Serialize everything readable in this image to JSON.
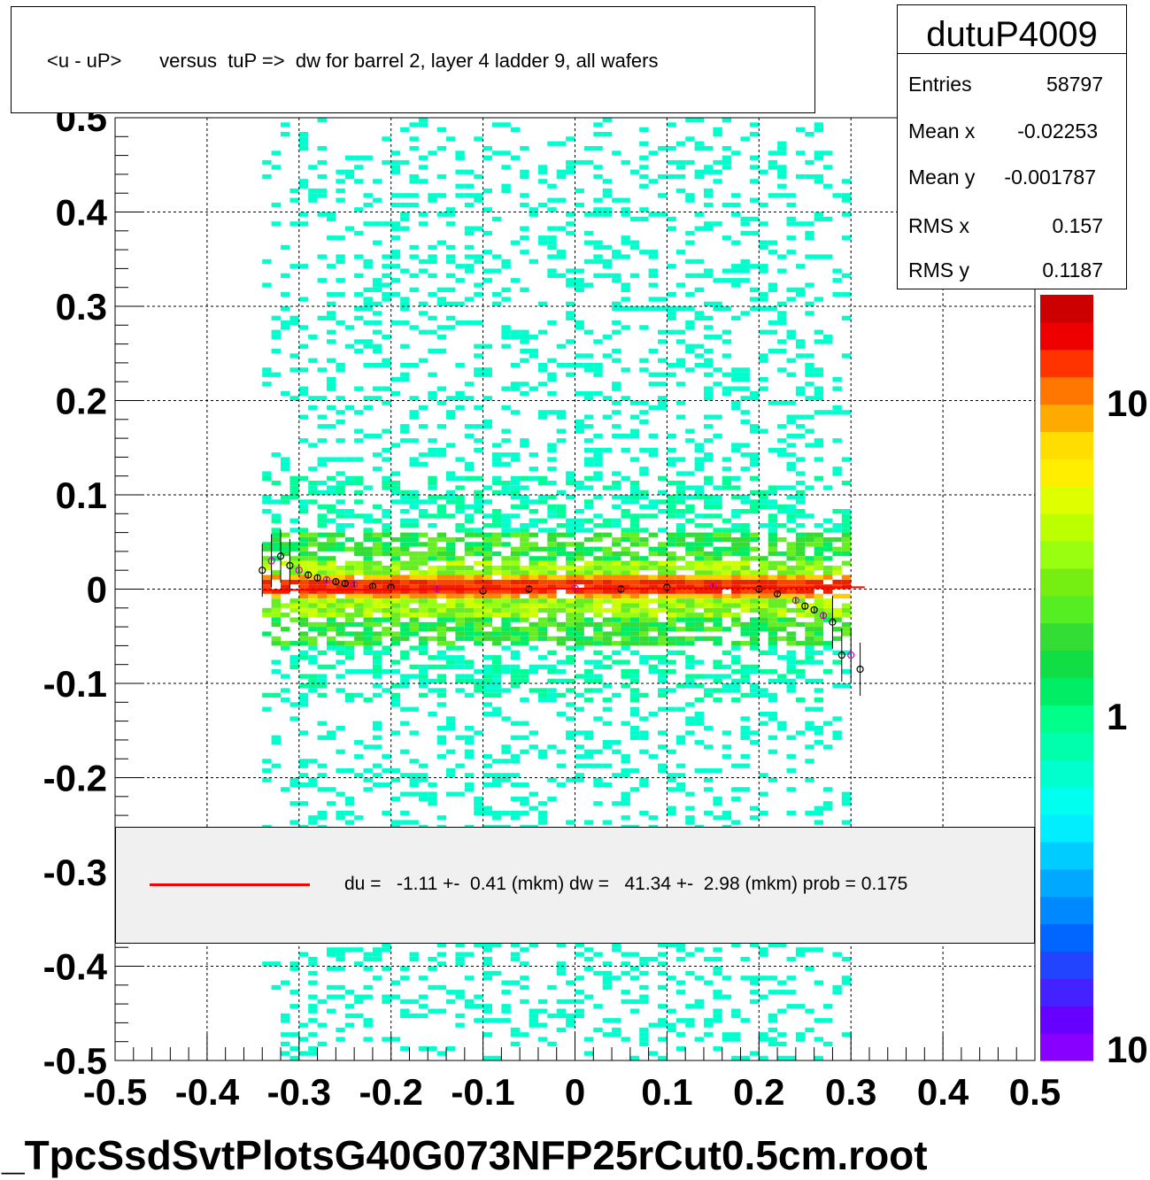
{
  "title": "<u - uP>       versus  tuP =>  dw for barrel 2, layer 4 ladder 9, all wafers",
  "stats": {
    "name": "dutuP4009",
    "rows": [
      {
        "label": "Entries",
        "value": "58797"
      },
      {
        "label": "Mean x",
        "value": "-0.02253"
      },
      {
        "label": "Mean y",
        "value": "-0.001787"
      },
      {
        "label": "RMS x",
        "value": "0.157"
      },
      {
        "label": "RMS y",
        "value": "0.1187"
      }
    ]
  },
  "legend": {
    "entry": "du =   -1.11 +-  0.41 (mkm) dw =   41.34 +-  2.98 (mkm) prob = 0.175",
    "line_color": "#ff0000"
  },
  "footer": "_TpcSsdSvtPlotsG40G073NFP25rCut0.5cm.root",
  "chart_data": {
    "type": "heatmap",
    "title": "<u - uP>       versus  tuP =>  dw for barrel 2, layer 4 ladder 9, all wafers",
    "xlabel": "",
    "ylabel": "",
    "xlim": [
      -0.5,
      0.5
    ],
    "ylim": [
      -0.5,
      0.5
    ],
    "x_ticks": [
      "-0.5",
      "-0.4",
      "-0.3",
      "-0.2",
      "-0.1",
      "0",
      "0.1",
      "0.2",
      "0.3",
      "0.4",
      "0.5"
    ],
    "y_ticks": [
      "-0.5",
      "-0.4",
      "-0.3",
      "-0.2",
      "-0.1",
      "0",
      "0.1",
      "0.2",
      "0.3",
      "0.4",
      "0.5"
    ],
    "grid": true,
    "colorbar": {
      "scale": "log",
      "tick_labels": [
        "10",
        "1",
        "10"
      ]
    },
    "occupied_x_range": [
      -0.34,
      0.3
    ],
    "band_center_y": 0.0,
    "profile_points": [
      {
        "x": -0.34,
        "y": 0.02
      },
      {
        "x": -0.33,
        "y": 0.03
      },
      {
        "x": -0.32,
        "y": 0.035
      },
      {
        "x": -0.31,
        "y": 0.025
      },
      {
        "x": -0.3,
        "y": 0.02
      },
      {
        "x": -0.29,
        "y": 0.015
      },
      {
        "x": -0.28,
        "y": 0.012
      },
      {
        "x": -0.27,
        "y": 0.01
      },
      {
        "x": -0.26,
        "y": 0.008
      },
      {
        "x": -0.25,
        "y": 0.006
      },
      {
        "x": -0.24,
        "y": 0.005
      },
      {
        "x": -0.22,
        "y": 0.003
      },
      {
        "x": -0.2,
        "y": 0.002
      },
      {
        "x": -0.15,
        "y": 0.0
      },
      {
        "x": -0.1,
        "y": -0.002
      },
      {
        "x": -0.05,
        "y": 0.0
      },
      {
        "x": 0.0,
        "y": 0.001
      },
      {
        "x": 0.05,
        "y": 0.0
      },
      {
        "x": 0.1,
        "y": 0.002
      },
      {
        "x": 0.15,
        "y": 0.003
      },
      {
        "x": 0.2,
        "y": 0.0
      },
      {
        "x": 0.22,
        "y": -0.005
      },
      {
        "x": 0.24,
        "y": -0.012
      },
      {
        "x": 0.25,
        "y": -0.018
      },
      {
        "x": 0.26,
        "y": -0.022
      },
      {
        "x": 0.27,
        "y": -0.028
      },
      {
        "x": 0.28,
        "y": -0.035
      },
      {
        "x": 0.29,
        "y": -0.07
      },
      {
        "x": 0.3,
        "y": -0.07
      },
      {
        "x": 0.31,
        "y": -0.085
      }
    ],
    "fit_line": {
      "x": [
        -0.34,
        0.315
      ],
      "y": [
        -0.001,
        0.002
      ]
    }
  }
}
